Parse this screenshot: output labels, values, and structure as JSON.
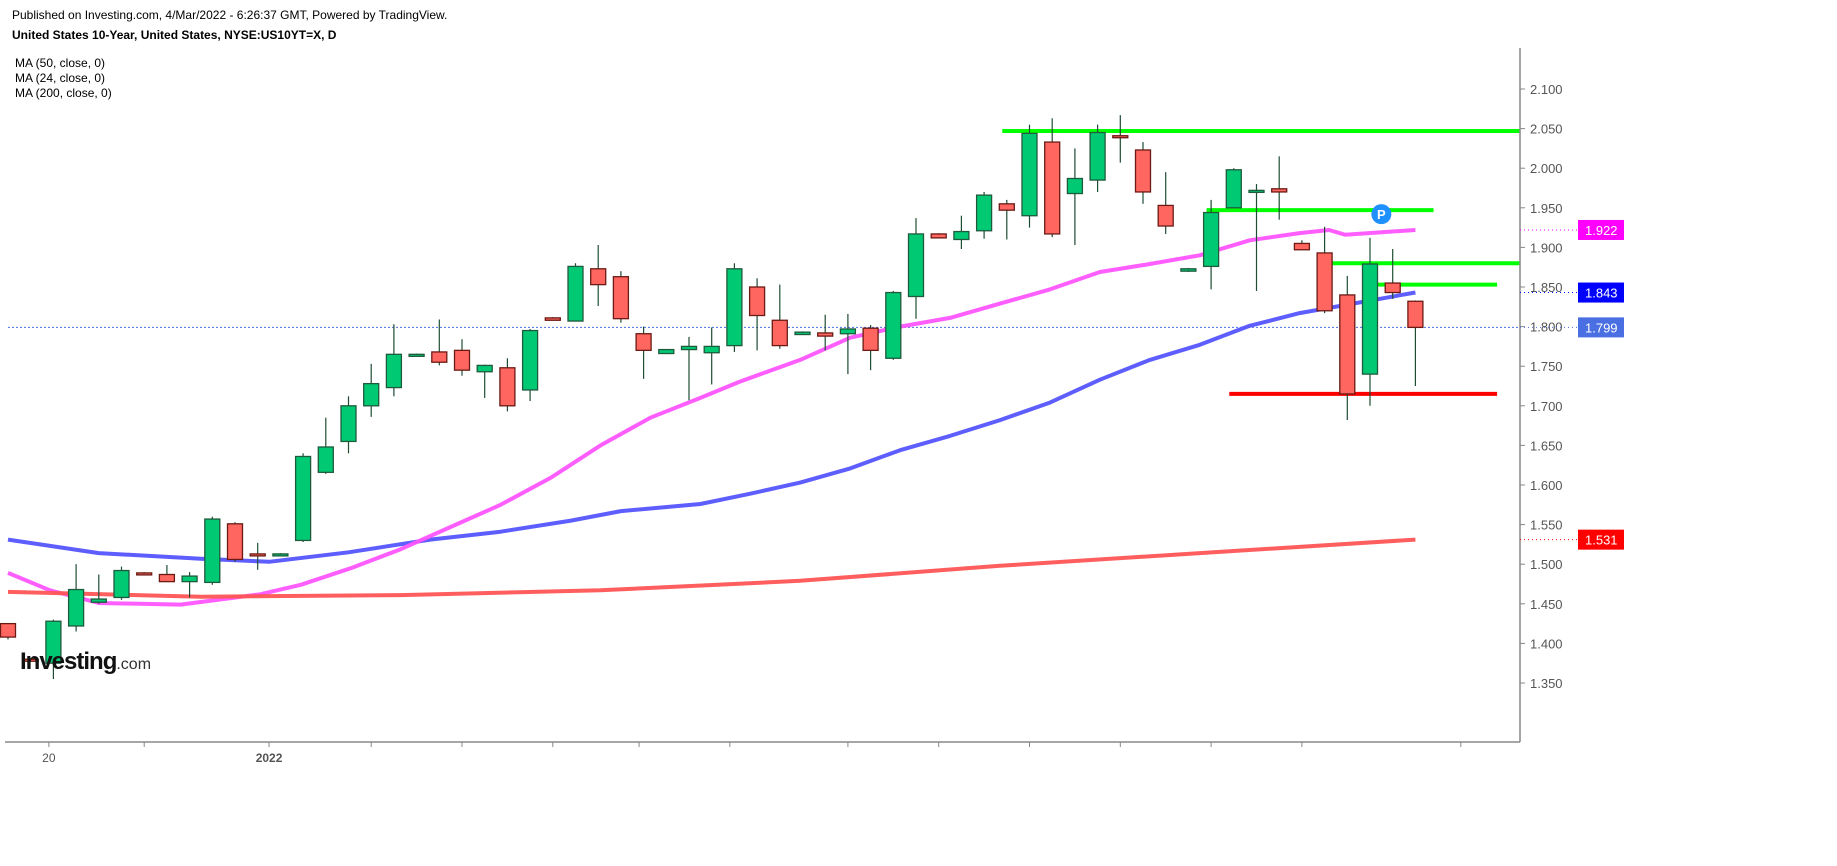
{
  "header": {
    "published": "Published on Investing.com, 4/Mar/2022 - 6:26:37 GMT, Powered by TradingView.",
    "title": "United States 10-Year, United States, NYSE:US10YT=X, D"
  },
  "legend": [
    "MA (50, close, 0)",
    "MA (24, close, 0)",
    "MA (200, close, 0)"
  ],
  "logo": {
    "main": "Investing",
    "suffix": ".com"
  },
  "marker": {
    "label": "P",
    "value": 1.942,
    "index": 60.5,
    "color": "#1e90ff"
  },
  "colors": {
    "up": "#00c974",
    "down": "#ff6660",
    "ma50": "#5555ff",
    "ma24": "#ff55ff",
    "ma200": "#ff5555",
    "support": "#ff0000",
    "resistance": "#00ff00"
  },
  "chart_data": {
    "type": "candlestick",
    "title": "United States 10-Year, United States, NYSE:US10YT=X, D",
    "ylim": [
      1.32,
      2.15
    ],
    "yticks": [
      "2.100",
      "2.050",
      "2.000",
      "1.950",
      "1.900",
      "1.850",
      "1.800",
      "1.750",
      "1.700",
      "1.650",
      "1.600",
      "1.550",
      "1.500",
      "1.450",
      "1.400",
      "1.350"
    ],
    "ytick_values": [
      2.1,
      2.05,
      2.0,
      1.95,
      1.9,
      1.85,
      1.8,
      1.75,
      1.7,
      1.65,
      1.6,
      1.55,
      1.5,
      1.45,
      1.4,
      1.35
    ],
    "xticks": [
      {
        "label": "20",
        "index": 1.8,
        "bold": false
      },
      {
        "label": "2022",
        "index": 11.5,
        "bold": true
      }
    ],
    "xtick_marks": [
      1.8,
      6,
      11.5,
      16,
      20,
      24,
      27.8,
      31.8,
      37,
      41,
      45,
      49,
      53,
      57,
      64
    ],
    "candles": [
      [
        1.425,
        1.425,
        1.405,
        1.408
      ],
      [
        1.38,
        1.381,
        1.377,
        1.378
      ],
      [
        1.375,
        1.43,
        1.355,
        1.428
      ],
      [
        1.422,
        1.5,
        1.415,
        1.468
      ],
      [
        1.452,
        1.487,
        1.45,
        1.456
      ],
      [
        1.458,
        1.497,
        1.455,
        1.492
      ],
      [
        1.489,
        1.49,
        1.486,
        1.487
      ],
      [
        1.487,
        1.499,
        1.478,
        1.478
      ],
      [
        1.478,
        1.49,
        1.458,
        1.485
      ],
      [
        1.477,
        1.56,
        1.474,
        1.557
      ],
      [
        1.551,
        1.553,
        1.503,
        1.506
      ],
      [
        1.513,
        1.527,
        1.493,
        1.512
      ],
      [
        1.512,
        1.514,
        1.511,
        1.513
      ],
      [
        1.53,
        1.64,
        1.528,
        1.636
      ],
      [
        1.616,
        1.685,
        1.614,
        1.648
      ],
      [
        1.655,
        1.712,
        1.64,
        1.7
      ],
      [
        1.7,
        1.753,
        1.686,
        1.728
      ],
      [
        1.723,
        1.803,
        1.712,
        1.765
      ],
      [
        1.765,
        1.766,
        1.764,
        1.765
      ],
      [
        1.768,
        1.809,
        1.751,
        1.755
      ],
      [
        1.77,
        1.784,
        1.738,
        1.745
      ],
      [
        1.743,
        1.752,
        1.71,
        1.751
      ],
      [
        1.748,
        1.76,
        1.693,
        1.7
      ],
      [
        1.72,
        1.797,
        1.706,
        1.795
      ],
      [
        1.811,
        1.812,
        1.808,
        1.808
      ],
      [
        1.807,
        1.88,
        1.807,
        1.876
      ],
      [
        1.873,
        1.903,
        1.826,
        1.853
      ],
      [
        1.863,
        1.87,
        1.805,
        1.81
      ],
      [
        1.791,
        1.8,
        1.734,
        1.77
      ],
      [
        1.766,
        1.771,
        1.766,
        1.771
      ],
      [
        1.771,
        1.787,
        1.707,
        1.775
      ],
      [
        1.767,
        1.799,
        1.727,
        1.775
      ],
      [
        1.776,
        1.88,
        1.768,
        1.873
      ],
      [
        1.85,
        1.861,
        1.77,
        1.814
      ],
      [
        1.808,
        1.853,
        1.772,
        1.776
      ],
      [
        1.79,
        1.794,
        1.79,
        1.793
      ],
      [
        1.792,
        1.815,
        1.77,
        1.788
      ],
      [
        1.791,
        1.816,
        1.74,
        1.797
      ],
      [
        1.798,
        1.802,
        1.745,
        1.77
      ],
      [
        1.76,
        1.845,
        1.758,
        1.843
      ],
      [
        1.838,
        1.937,
        1.81,
        1.917
      ],
      [
        1.917,
        1.918,
        1.912,
        1.912
      ],
      [
        1.91,
        1.94,
        1.898,
        1.92
      ],
      [
        1.921,
        1.97,
        1.911,
        1.966
      ],
      [
        1.955,
        1.96,
        1.91,
        1.947
      ],
      [
        1.94,
        2.055,
        1.925,
        2.044
      ],
      [
        2.033,
        2.063,
        1.913,
        1.917
      ],
      [
        1.968,
        2.025,
        1.903,
        1.987
      ],
      [
        1.985,
        2.055,
        1.97,
        2.045
      ],
      [
        2.041,
        2.067,
        2.007,
        2.04
      ],
      [
        2.023,
        2.033,
        1.955,
        1.97
      ],
      [
        1.953,
        1.995,
        1.917,
        1.927
      ],
      [
        1.87,
        1.874,
        1.869,
        1.873
      ],
      [
        1.876,
        1.96,
        1.847,
        1.944
      ],
      [
        1.95,
        2.0,
        1.95,
        1.998
      ],
      [
        1.971,
        1.98,
        1.845,
        1.972
      ],
      [
        1.974,
        2.015,
        1.935,
        1.97
      ],
      [
        1.905,
        1.909,
        1.897,
        1.897
      ],
      [
        1.893,
        1.926,
        1.817,
        1.82
      ],
      [
        1.84,
        1.864,
        1.682,
        1.715
      ],
      [
        1.74,
        1.912,
        1.7,
        1.879
      ],
      [
        1.855,
        1.898,
        1.835,
        1.843
      ],
      [
        1.832,
        1.833,
        1.725,
        1.799
      ]
    ],
    "candle_fields": [
      "open",
      "high",
      "low",
      "close"
    ],
    "series": [
      {
        "name": "MA (50, close, 0)",
        "color": "#5555ff",
        "last": "1.843",
        "points": [
          [
            0,
            1.531
          ],
          [
            4,
            1.514
          ],
          [
            8.5,
            1.507
          ],
          [
            11.5,
            1.503
          ],
          [
            15,
            1.515
          ],
          [
            18.6,
            1.531
          ],
          [
            21.7,
            1.541
          ],
          [
            24.8,
            1.555
          ],
          [
            27,
            1.567
          ],
          [
            30.5,
            1.576
          ],
          [
            32.7,
            1.589
          ],
          [
            34.9,
            1.603
          ],
          [
            37.1,
            1.621
          ],
          [
            39.3,
            1.644
          ],
          [
            41.5,
            1.662
          ],
          [
            43.7,
            1.682
          ],
          [
            45.9,
            1.704
          ],
          [
            48.1,
            1.733
          ],
          [
            50.3,
            1.758
          ],
          [
            52.5,
            1.777
          ],
          [
            54.7,
            1.801
          ],
          [
            56.9,
            1.817
          ],
          [
            62,
            1.843
          ]
        ]
      },
      {
        "name": "MA (24, close, 0)",
        "color": "#ff55ff",
        "last": "1.922",
        "points": [
          [
            0,
            1.489
          ],
          [
            1.85,
            1.467
          ],
          [
            4,
            1.451
          ],
          [
            7.6,
            1.449
          ],
          [
            11.1,
            1.462
          ],
          [
            12.9,
            1.474
          ],
          [
            15.1,
            1.495
          ],
          [
            17.3,
            1.519
          ],
          [
            19.5,
            1.547
          ],
          [
            21.7,
            1.575
          ],
          [
            23.9,
            1.609
          ],
          [
            26.1,
            1.65
          ],
          [
            28.3,
            1.685
          ],
          [
            30.5,
            1.71
          ],
          [
            32.2,
            1.73
          ],
          [
            34.9,
            1.758
          ],
          [
            37.1,
            1.786
          ],
          [
            39.3,
            1.8
          ],
          [
            41.5,
            1.811
          ],
          [
            43.7,
            1.829
          ],
          [
            45.9,
            1.847
          ],
          [
            48.1,
            1.869
          ],
          [
            50.3,
            1.879
          ],
          [
            52.5,
            1.89
          ],
          [
            54.7,
            1.909
          ],
          [
            56.9,
            1.918
          ],
          [
            58.2,
            1.922
          ],
          [
            58.9,
            1.916
          ],
          [
            62,
            1.922
          ]
        ]
      },
      {
        "name": "MA (200, close, 0)",
        "color": "#ff5555",
        "last": "1.531",
        "points": [
          [
            0,
            1.465
          ],
          [
            8.5,
            1.459
          ],
          [
            17.3,
            1.461
          ],
          [
            26.1,
            1.467
          ],
          [
            34.9,
            1.479
          ],
          [
            43.7,
            1.498
          ],
          [
            52.5,
            1.514
          ],
          [
            62,
            1.531
          ]
        ]
      }
    ],
    "horizontal_lines": [
      {
        "value": 2.047,
        "from": 43.8,
        "to": 67,
        "color": "#00ff00"
      },
      {
        "value": 1.947,
        "from": 52.8,
        "to": 62.8,
        "color": "#00ff00"
      },
      {
        "value": 1.88,
        "from": 57.8,
        "to": 66.6,
        "color": "#00ff00"
      },
      {
        "value": 1.853,
        "from": 60,
        "to": 65.6,
        "color": "#00ff00"
      },
      {
        "value": 1.715,
        "from": 53.8,
        "to": 65.6,
        "color": "#ff0000"
      }
    ],
    "last_price": {
      "value": 1.799,
      "label": "1.799",
      "color": "#4a6fe3"
    },
    "price_tags": [
      {
        "label": "1.922",
        "value": 1.922,
        "color": "#ff00ff"
      },
      {
        "label": "1.843",
        "value": 1.843,
        "color": "#0000ff"
      },
      {
        "label": "1.799",
        "value": 1.799,
        "color": "#4a6fe3"
      },
      {
        "label": "1.531",
        "value": 1.531,
        "color": "#ff0000"
      }
    ]
  }
}
